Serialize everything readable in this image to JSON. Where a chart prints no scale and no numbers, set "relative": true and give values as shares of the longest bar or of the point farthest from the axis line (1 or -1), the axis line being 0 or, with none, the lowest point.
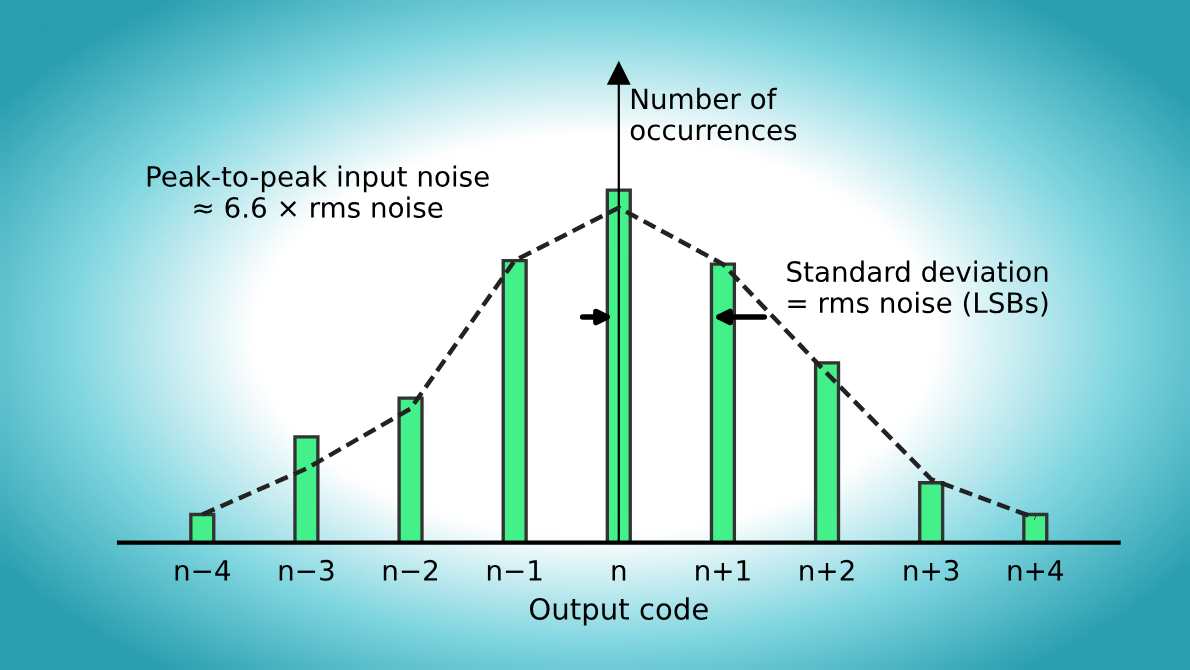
{
  "chart_data": {
    "type": "bar",
    "relative": true,
    "xlabel": "Output code",
    "ylabel": "Number of occurrences",
    "categories": [
      "n−4",
      "n−3",
      "n−2",
      "n−1",
      "n",
      "n+1",
      "n+2",
      "n+3",
      "n+4"
    ],
    "series": [
      {
        "color": "#44f08a",
        "values": [
          0.08,
          0.3,
          0.41,
          0.8,
          1,
          0.79,
          0.51,
          0.17,
          0.08
        ]
      },
      {
        "type": "line",
        "color": "#222222",
        "line_style": "dashed",
        "marker": "none",
        "values": [
          0.08,
          0.21,
          0.38,
          0.8,
          0.95,
          0.79,
          0.48,
          0.18,
          0.07
        ]
      }
    ],
    "annotations": [
      "Peak-to-peak input noise\n≈ 6.6 × rms noise",
      "Standard deviation\n= rms noise (LSBs)"
    ],
    "legend": false
  }
}
